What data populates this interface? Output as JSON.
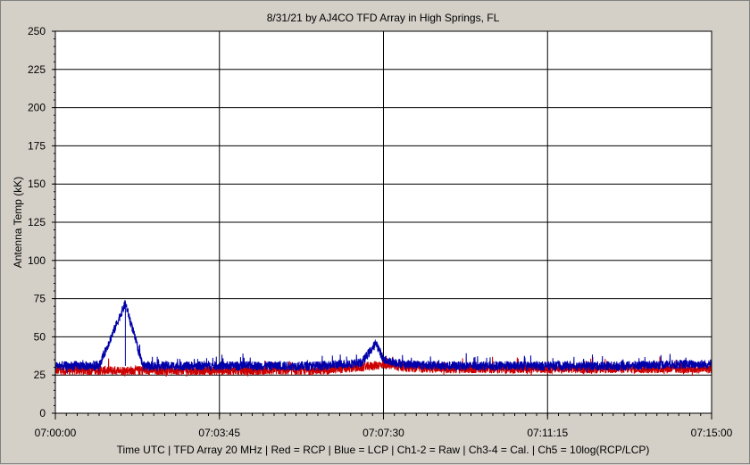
{
  "chart_data": {
    "type": "line",
    "title": "8/31/21  by  AJ4CO TFD Array  in  High Springs, FL",
    "ylabel": "Antenna Temp (kK)",
    "xlabel": "Time UTC | TFD Array 20 MHz | Red = RCP | Blue = LCP | Ch1-2 = Raw | Ch3-4 = Cal. | Ch5 = 10log(RCP/LCP)",
    "ylim": [
      0,
      250
    ],
    "xlim": [
      "07:00:00",
      "07:15:00"
    ],
    "x_ticks": [
      "07:00:00",
      "07:03:45",
      "07:07:30",
      "07:11:15",
      "07:15:00"
    ],
    "y_ticks": [
      "0",
      "25",
      "50",
      "75",
      "100",
      "125",
      "150",
      "175",
      "200",
      "225",
      "250"
    ],
    "grid": true,
    "series": [
      {
        "name": "RCP",
        "color": "#cc0000",
        "x": [
          "07:00:00",
          "07:01:00",
          "07:02:00",
          "07:03:00",
          "07:04:00",
          "07:05:00",
          "07:06:00",
          "07:07:00",
          "07:07:30",
          "07:08:00",
          "07:09:00",
          "07:10:00",
          "07:11:00",
          "07:12:00",
          "07:13:00",
          "07:14:00",
          "07:15:00"
        ],
        "values": [
          28,
          28,
          28,
          28,
          28,
          28,
          28,
          30,
          32,
          30,
          29,
          29,
          29,
          29,
          29,
          29,
          29
        ]
      },
      {
        "name": "LCP",
        "color": "#0000aa",
        "x": [
          "07:00:00",
          "07:01:00",
          "07:01:36",
          "07:02:00",
          "07:03:00",
          "07:04:00",
          "07:05:00",
          "07:06:00",
          "07:07:00",
          "07:07:20",
          "07:07:30",
          "07:08:00",
          "07:09:00",
          "07:10:00",
          "07:11:00",
          "07:12:00",
          "07:13:00",
          "07:14:00",
          "07:15:00"
        ],
        "values": [
          31,
          31,
          72,
          31,
          31,
          31,
          31,
          31,
          33,
          46,
          35,
          32,
          31,
          31,
          31,
          31,
          31,
          32,
          32
        ]
      }
    ]
  }
}
